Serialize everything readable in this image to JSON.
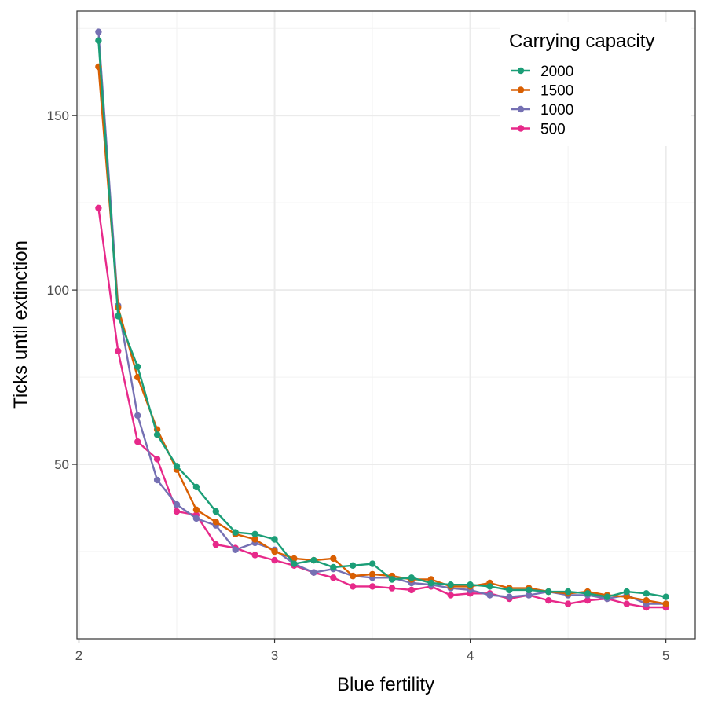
{
  "chart_data": {
    "type": "line",
    "xlabel": "Blue fertility",
    "ylabel": "Ticks until extinction",
    "xlim": [
      1.99,
      5.15
    ],
    "ylim": [
      0,
      180
    ],
    "x_ticks": [
      2,
      3,
      4,
      5
    ],
    "y_ticks": [
      50,
      100,
      150
    ],
    "grid": true,
    "legend": {
      "title": "Carrying capacity",
      "placement": "top-right"
    },
    "x": [
      2.1,
      2.2,
      2.3,
      2.4,
      2.5,
      2.6,
      2.7,
      2.8,
      2.9,
      3.0,
      3.1,
      3.2,
      3.3,
      3.4,
      3.5,
      3.6,
      3.7,
      3.8,
      3.9,
      4.0,
      4.1,
      4.2,
      4.3,
      4.4,
      4.5,
      4.6,
      4.7,
      4.8,
      4.9,
      5.0
    ],
    "series": [
      {
        "name": "2000",
        "color": "#1b9e77",
        "values": [
          171.5,
          92.5,
          78,
          58.5,
          49.5,
          43.5,
          36.5,
          30.5,
          30,
          28.5,
          21.5,
          22.5,
          20.5,
          21,
          21.5,
          17,
          17.5,
          16,
          15.5,
          15.5,
          15,
          14,
          14,
          13.5,
          13.5,
          13,
          12,
          13.5,
          13,
          12
        ]
      },
      {
        "name": "1500",
        "color": "#d95f02",
        "values": [
          164,
          95,
          75,
          60,
          48.5,
          37,
          33.5,
          30,
          28.5,
          25,
          23,
          22.5,
          23,
          18,
          18.5,
          18,
          17,
          17,
          15,
          15,
          16,
          14.5,
          14.5,
          13.5,
          13,
          13.5,
          12.5,
          12,
          11,
          10
        ]
      },
      {
        "name": "1000",
        "color": "#7570b3",
        "values": [
          174,
          95.5,
          64,
          45.5,
          38.5,
          34.5,
          32.5,
          25.5,
          27.5,
          25.5,
          21.5,
          19,
          20,
          18,
          17.5,
          17.5,
          16,
          15.5,
          14.5,
          14,
          12.5,
          12,
          12.5,
          13.5,
          12.5,
          12.5,
          11.5,
          12.5,
          10,
          10
        ]
      },
      {
        "name": "500",
        "color": "#e7298a",
        "values": [
          123.5,
          82.5,
          56.5,
          51.5,
          36.5,
          35.5,
          27,
          26,
          24,
          22.5,
          21,
          19,
          17.5,
          15,
          15,
          14.5,
          14,
          15,
          12.5,
          13,
          13,
          11.5,
          12.5,
          11,
          10,
          11,
          11.5,
          10,
          9,
          9
        ]
      }
    ]
  }
}
